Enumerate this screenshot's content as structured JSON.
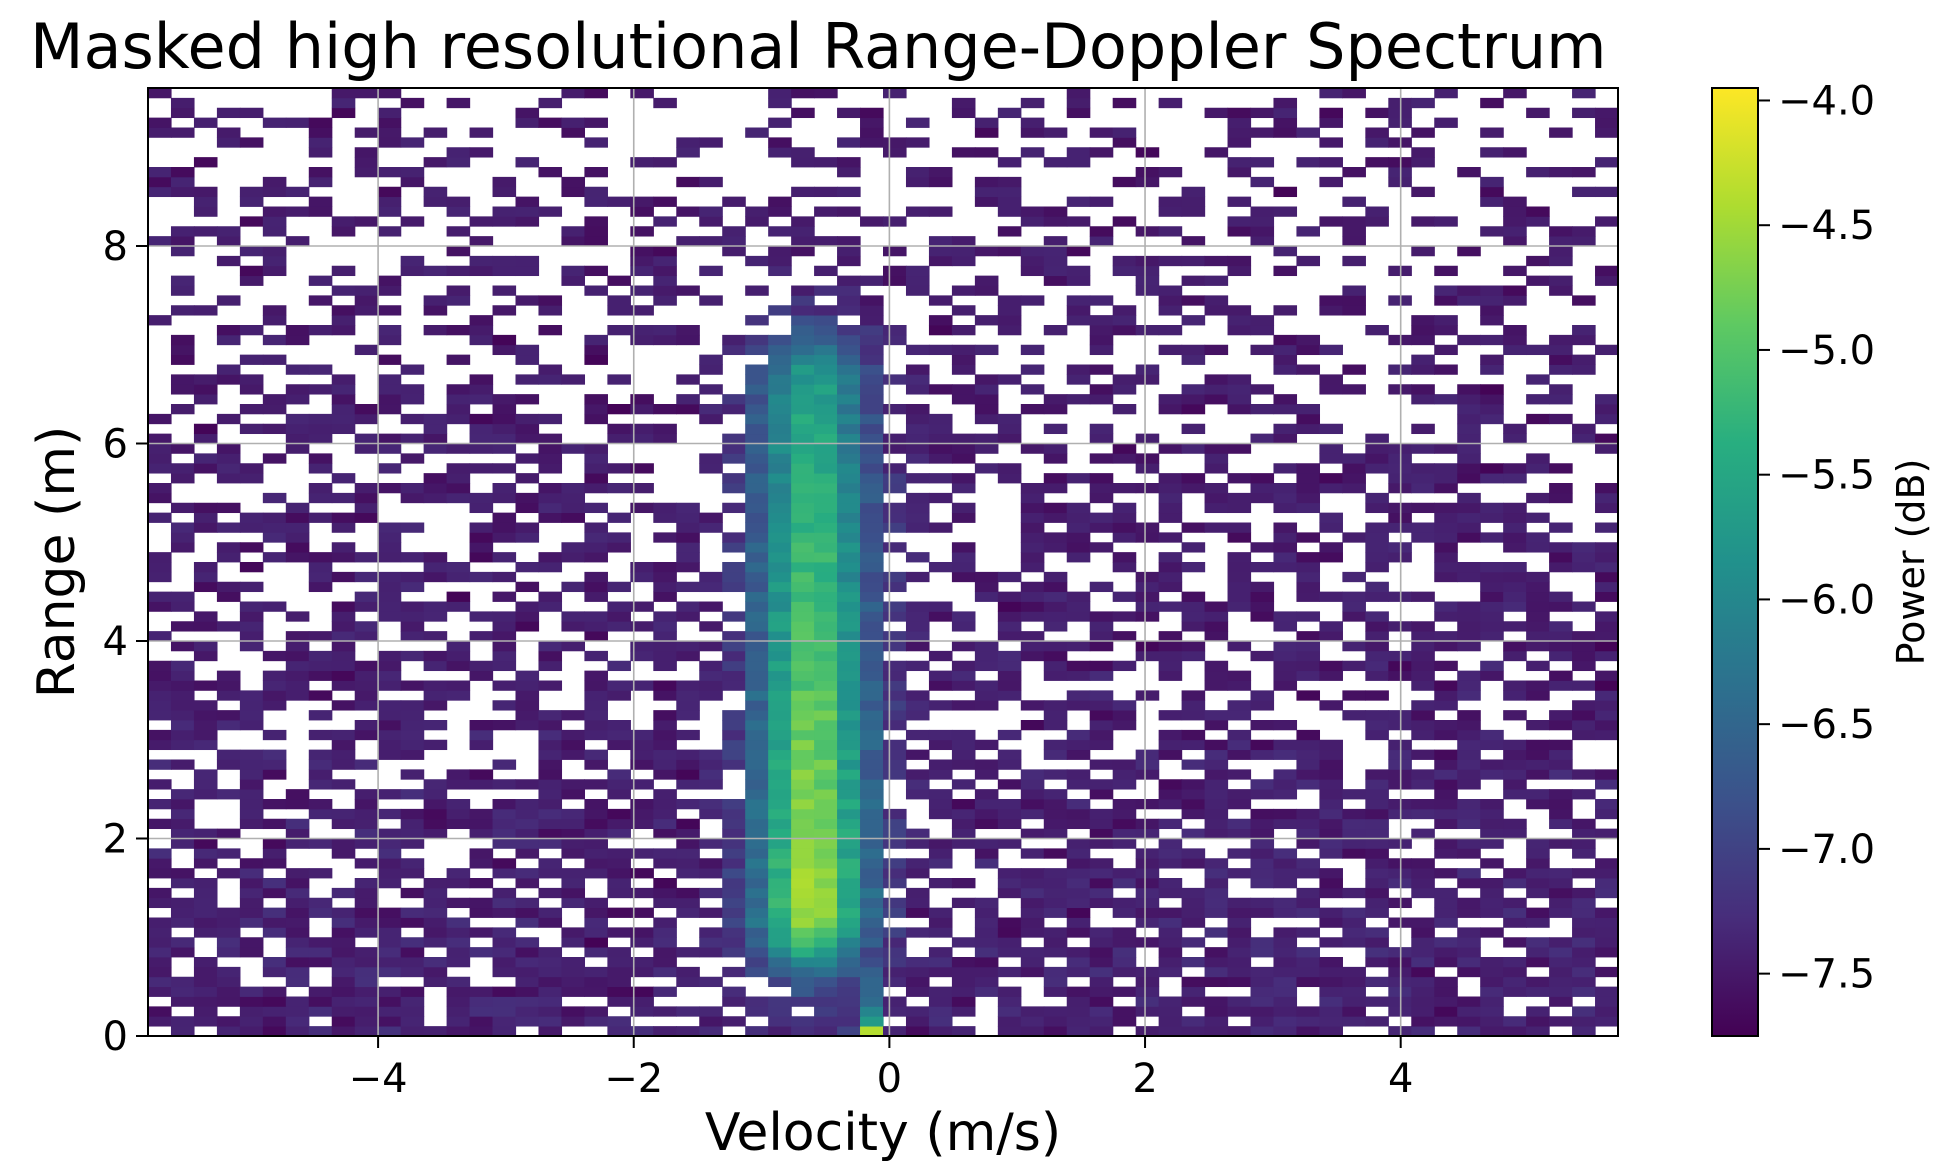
{
  "chart_data": {
    "type": "heatmap",
    "title": "Masked high resolutional Range-Doppler Spectrum",
    "xlabel": "Velocity (m/s)",
    "ylabel": "Range (m)",
    "colorbar_label": "Power (dB)",
    "colormap": "viridis",
    "xlim": [
      -5.8,
      5.7
    ],
    "ylim": [
      0,
      9.6
    ],
    "clim": [
      -7.75,
      -3.95
    ],
    "x_ticks": [
      -4,
      -2,
      0,
      2,
      4
    ],
    "x_tick_labels": [
      "−4",
      "−2",
      "0",
      "2",
      "4"
    ],
    "y_ticks": [
      0,
      2,
      4,
      6,
      8
    ],
    "y_tick_labels": [
      "0",
      "2",
      "4",
      "6",
      "8"
    ],
    "colorbar_ticks": [
      -4.0,
      -4.5,
      -5.0,
      -5.5,
      -6.0,
      -6.5,
      -7.0,
      -7.5
    ],
    "colorbar_tick_labels": [
      "−4.0",
      "−4.5",
      "−5.0",
      "−5.5",
      "−6.0",
      "−6.5",
      "−7.0",
      "−7.5"
    ],
    "grid": true,
    "masked_color": "#ffffff",
    "grid_resolution": {
      "velocity_bins": 64,
      "range_bins": 96
    },
    "features": [
      {
        "label": "main target",
        "velocity_center": -0.6,
        "velocity_width": 0.45,
        "range_from": 1.3,
        "range_to": 6.5,
        "peak_power": -4.6
      },
      {
        "label": "zero-velocity return",
        "velocity_center": -0.15,
        "range_from": 0.0,
        "range_to": 0.1,
        "peak_power": -4.0
      }
    ]
  }
}
